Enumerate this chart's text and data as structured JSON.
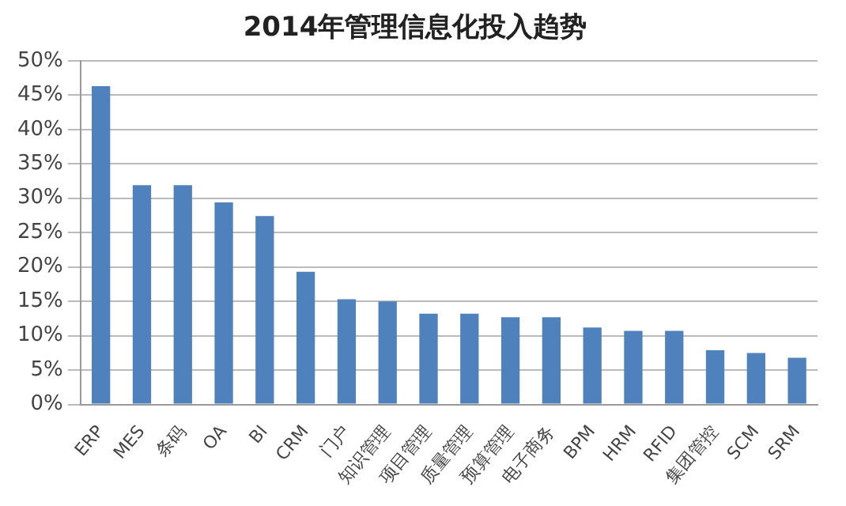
{
  "chart_data": {
    "type": "bar",
    "title": "2014年管理信息化投入趋势",
    "categories": [
      "ERP",
      "MES",
      "条码",
      "OA",
      "BI",
      "CRM",
      "门户",
      "知识管理",
      "项目管理",
      "质量管理",
      "预算管理",
      "电子商务",
      "BPM",
      "HRM",
      "RFID",
      "集团管控",
      "SCM",
      "SRM"
    ],
    "values": [
      46.3,
      31.9,
      31.9,
      29.4,
      27.4,
      19.3,
      15.3,
      15.0,
      13.2,
      13.2,
      12.7,
      12.7,
      11.2,
      10.7,
      10.7,
      7.9,
      7.5,
      6.8
    ],
    "color": "#4f81bd",
    "ylim": [
      0,
      50
    ],
    "yticks": [
      {
        "value": 0,
        "label": "0%"
      },
      {
        "value": 5,
        "label": "5%"
      },
      {
        "value": 10,
        "label": "10%"
      },
      {
        "value": 15,
        "label": "15%"
      },
      {
        "value": 20,
        "label": "20%"
      },
      {
        "value": 25,
        "label": "25%"
      },
      {
        "value": 30,
        "label": "30%"
      },
      {
        "value": 35,
        "label": "35%"
      },
      {
        "value": 40,
        "label": "40%"
      },
      {
        "value": 45,
        "label": "45%"
      },
      {
        "value": 50,
        "label": "50%"
      }
    ],
    "grid": "y"
  }
}
